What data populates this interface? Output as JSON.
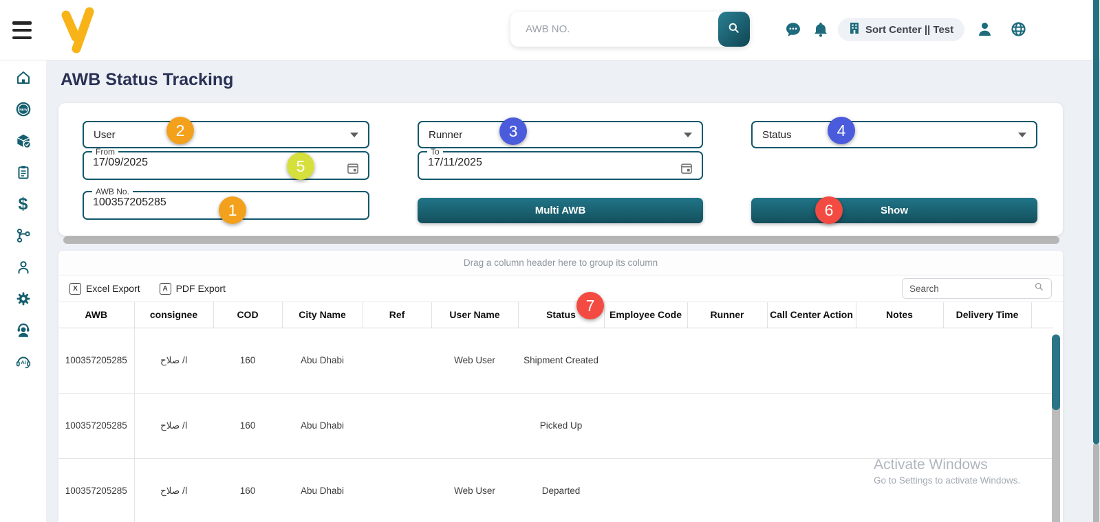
{
  "header": {
    "search_placeholder": "AWB NO.",
    "workspace_label": "Sort Center || Test",
    "icons": {
      "menu": "hamburger-menu",
      "logo": "v-logo",
      "search": "search-icon",
      "chat": "chat-bubble-icon",
      "bell": "notifications-bell-icon",
      "building": "building-icon",
      "user": "user-profile-icon",
      "globe": "language-globe-icon"
    }
  },
  "sidebar": {
    "icons": [
      "home",
      "new-badge",
      "package-check",
      "clipboard",
      "dollar",
      "workflow-branch",
      "person",
      "settings-gear",
      "support-agent",
      "ai-assistant"
    ]
  },
  "page": {
    "title": "AWB Status Tracking"
  },
  "filters": {
    "user": {
      "label": "User",
      "badge": "2"
    },
    "runner": {
      "label": "Runner",
      "badge": "3"
    },
    "status": {
      "label": "Status",
      "badge": "4"
    },
    "from": {
      "label": "From",
      "value": "17/09/2025",
      "badge": "5"
    },
    "to": {
      "label": "To",
      "value": "17/11/2025"
    },
    "awb": {
      "label": "AWB No.",
      "value": "100357205285",
      "badge": "1"
    },
    "multi_awb_label": "Multi AWB",
    "show_label": "Show",
    "show_badge": "6"
  },
  "grid": {
    "group_hint": "Drag a column header here to group its column",
    "excel_export_label": "Excel Export",
    "pdf_export_label": "PDF Export",
    "search_placeholder": "Search",
    "status_header_badge": "7",
    "columns": [
      "AWB",
      "consignee",
      "COD",
      "City Name",
      "Ref",
      "User Name",
      "Status",
      "Employee Code",
      "Runner",
      "Call Center Action",
      "Notes",
      "Delivery Time",
      ""
    ],
    "rows": [
      {
        "awb": "100357205285",
        "consignee": "ا/ صلاح",
        "cod": "160",
        "city_name": "Abu Dhabi",
        "ref": "",
        "user_name": "Web User",
        "status": "Shipment Created",
        "employee_code": "",
        "runner": "",
        "call_center_action": "",
        "notes": "",
        "delivery_time": "",
        "spacer": ""
      },
      {
        "awb": "100357205285",
        "consignee": "ا/ صلاح",
        "cod": "160",
        "city_name": "Abu Dhabi",
        "ref": "",
        "user_name": "",
        "status": "Picked Up",
        "employee_code": "",
        "runner": "",
        "call_center_action": "",
        "notes": "",
        "delivery_time": "",
        "spacer": ""
      },
      {
        "awb": "100357205285",
        "consignee": "ا/ صلاح",
        "cod": "160",
        "city_name": "Abu Dhabi",
        "ref": "",
        "user_name": "Web User",
        "status": "Departed",
        "employee_code": "",
        "runner": "",
        "call_center_action": "",
        "notes": "",
        "delivery_time": "",
        "spacer": ""
      }
    ]
  },
  "watermark": {
    "line1": "Activate Windows",
    "line2": "Go to Settings to activate Windows."
  },
  "colors": {
    "teal": "#1b6b7d",
    "teal_dark": "#14505d",
    "accent_yellow": "#f7b318",
    "badge_orange": "#f3a11c",
    "badge_blue": "#4a5bdc",
    "badge_lime": "#d6e03d",
    "badge_red": "#f34b42",
    "title_navy": "#2a3154",
    "page_bg": "#edf1f6"
  }
}
